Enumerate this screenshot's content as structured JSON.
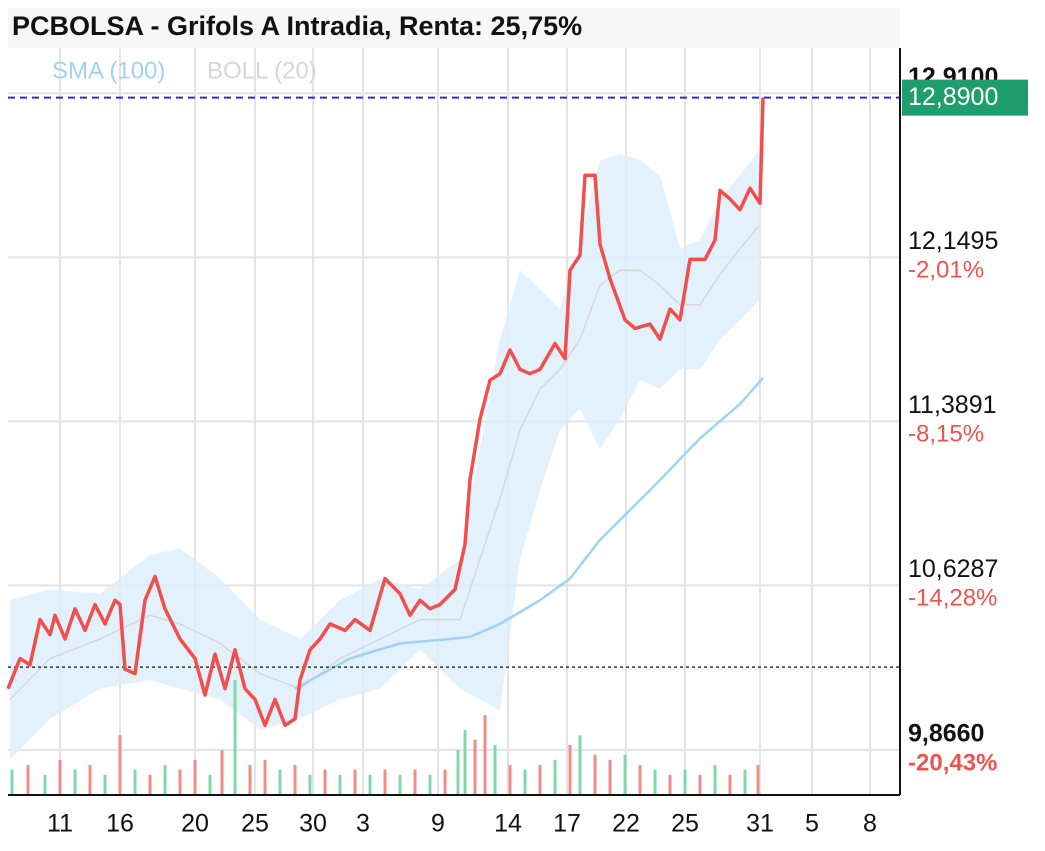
{
  "chart_data": {
    "type": "line",
    "title": "PCBOLSA - Grifols A Intradia, Renta: 25,75%",
    "xlim": [
      0,
      89.2
    ],
    "xticks": [
      {
        "value": 5.2,
        "label": "11"
      },
      {
        "value": 11.2,
        "label": "16"
      },
      {
        "value": 18.7,
        "label": "20"
      },
      {
        "value": 24.7,
        "label": "25"
      },
      {
        "value": 30.5,
        "label": "30"
      },
      {
        "value": 35.5,
        "label": "3"
      },
      {
        "value": 43,
        "label": "9"
      },
      {
        "value": 50,
        "label": "14"
      },
      {
        "value": 55.9,
        "label": "17"
      },
      {
        "value": 61.8,
        "label": "22"
      },
      {
        "value": 67.7,
        "label": "25"
      },
      {
        "value": 75.2,
        "label": "31"
      },
      {
        "value": 80.4,
        "label": "5"
      },
      {
        "value": 86.2,
        "label": "8"
      }
    ],
    "ylim": [
      9.657,
      13.12
    ],
    "yticks": [
      {
        "value": 9.866,
        "label": "9,8660"
      },
      {
        "value": 10.6287,
        "label": "10,6287"
      },
      {
        "value": 11.3891,
        "label": "11,3891"
      },
      {
        "value": 12.1495,
        "label": "12,1495"
      },
      {
        "value": 12.91,
        "label": "12,9100"
      }
    ],
    "ytick_changes": [
      "-20,43%",
      "-14,28%",
      "-8,15%",
      "-2,01%",
      null
    ],
    "grid": true,
    "y2lim": [
      0,
      100
    ],
    "price": {
      "color": "#f24e4c",
      "x": [
        0,
        1.2,
        2.2,
        3.2,
        4.2,
        4.7,
        5.7,
        6.7,
        7.7,
        8.7,
        9.7,
        10.7,
        11.2,
        11.7,
        12.7,
        13.7,
        14.7,
        15.7,
        17.2,
        18.7,
        19.7,
        20.7,
        21.7,
        22.7,
        23.7,
        24.7,
        25.7,
        26.7,
        27.7,
        28.7,
        29.2,
        30.2,
        31.2,
        32.2,
        33.7,
        34.7,
        36.2,
        37.7,
        39.2,
        40.2,
        41.2,
        42.2,
        43.2,
        44.7,
        45.7,
        46.2,
        47.2,
        48.2,
        49.2,
        50.2,
        51.2,
        52.2,
        53.2,
        54.7,
        55.7,
        56.2,
        57.2,
        57.7,
        58.7,
        59.2,
        60.2,
        61.7,
        62.7,
        64.2,
        65.2,
        66.2,
        67.2,
        68.2,
        69.7,
        70.7,
        71.2,
        72.2,
        73.2,
        74.2,
        75.2,
        75.5
      ],
      "values": [
        10.15,
        10.29,
        10.26,
        10.47,
        10.4,
        10.49,
        10.38,
        10.52,
        10.42,
        10.54,
        10.45,
        10.56,
        10.54,
        10.24,
        10.22,
        10.56,
        10.67,
        10.52,
        10.38,
        10.29,
        10.12,
        10.31,
        10.15,
        10.33,
        10.15,
        10.1,
        9.98,
        10.1,
        9.98,
        10.01,
        10.19,
        10.33,
        10.38,
        10.45,
        10.42,
        10.47,
        10.42,
        10.66,
        10.59,
        10.49,
        10.56,
        10.52,
        10.54,
        10.61,
        10.82,
        11.12,
        11.4,
        11.58,
        11.61,
        11.72,
        11.63,
        11.61,
        11.63,
        11.75,
        11.68,
        12.09,
        12.16,
        12.53,
        12.53,
        12.21,
        12.05,
        11.86,
        11.82,
        11.84,
        11.77,
        11.91,
        11.86,
        12.14,
        12.14,
        12.23,
        12.46,
        12.42,
        12.37,
        12.47,
        12.4,
        12.89
      ]
    },
    "sma": {
      "name": "SMA (100)",
      "color": "#9fd2f5",
      "x": [
        28.7,
        34.2,
        39.2,
        44.2,
        46.2,
        49.2,
        53.2,
        56.2,
        59.2,
        64.2,
        69.2,
        73.2,
        75.5
      ],
      "values": [
        10.15,
        10.29,
        10.36,
        10.38,
        10.39,
        10.45,
        10.56,
        10.66,
        10.84,
        11.07,
        11.31,
        11.47,
        11.59
      ]
    },
    "boll": {
      "name": "BOLL (20)",
      "color": "#d6d6d6",
      "fill": "#dcedfb",
      "x": [
        0.2,
        4.2,
        9.2,
        14.2,
        17.2,
        21.2,
        25.2,
        29.2,
        33.2,
        37.2,
        41.2,
        45.2,
        49.2,
        51.2,
        53.2,
        55.2,
        57.2,
        59.2,
        61.2,
        63.2,
        65.2,
        67.2,
        69.2,
        71.2,
        73.2,
        75.2
      ],
      "upper": [
        10.56,
        10.61,
        10.59,
        10.77,
        10.8,
        10.66,
        10.47,
        10.38,
        10.56,
        10.66,
        10.61,
        10.75,
        11.77,
        12.09,
        12.0,
        11.91,
        12.23,
        12.6,
        12.63,
        12.6,
        12.53,
        12.19,
        12.23,
        12.42,
        12.53,
        12.65
      ],
      "middle": [
        10.1,
        10.29,
        10.38,
        10.49,
        10.45,
        10.36,
        10.22,
        10.15,
        10.29,
        10.38,
        10.47,
        10.47,
        11.03,
        11.35,
        11.54,
        11.63,
        11.77,
        12.02,
        12.09,
        12.09,
        12.02,
        11.93,
        11.93,
        12.07,
        12.19,
        12.3
      ],
      "lower": [
        9.82,
        10.01,
        10.15,
        10.19,
        10.15,
        10.1,
        9.96,
        10.01,
        10.1,
        10.15,
        10.33,
        10.15,
        10.05,
        10.75,
        11.07,
        11.35,
        11.45,
        11.26,
        11.4,
        11.58,
        11.54,
        11.63,
        11.63,
        11.77,
        11.86,
        11.95
      ]
    },
    "volume": {
      "axis": "y2",
      "x": [
        0.4,
        2,
        3.7,
        5.2,
        6.7,
        8.2,
        9.7,
        11.2,
        12.7,
        14.2,
        15.7,
        17.2,
        18.7,
        20.2,
        21.4,
        22.7,
        24.2,
        25.7,
        27.2,
        28.7,
        30.2,
        31.7,
        33.2,
        34.7,
        36.2,
        37.7,
        39.2,
        40.7,
        42.2,
        43.7,
        45,
        45.7,
        46.7,
        47.7,
        48.7,
        50.2,
        51.7,
        53.2,
        54.7,
        56.2,
        57.2,
        58.7,
        60.2,
        61.7,
        63.2,
        64.7,
        66.2,
        67.7,
        69.2,
        70.7,
        72.2,
        73.7,
        75
      ],
      "values": [
        3.4,
        4.0,
        2.7,
        4.7,
        3.4,
        4.0,
        2.7,
        8.0,
        3.4,
        2.7,
        4.0,
        3.4,
        4.7,
        2.7,
        6.0,
        15.4,
        4.0,
        4.7,
        3.4,
        4.0,
        2.7,
        3.4,
        2.7,
        3.4,
        2.7,
        3.4,
        2.7,
        3.4,
        2.7,
        3.4,
        6.0,
        8.7,
        7.4,
        10.7,
        6.7,
        4.0,
        3.4,
        4.0,
        4.7,
        6.7,
        8.0,
        5.4,
        4.7,
        5.4,
        4.0,
        3.4,
        2.7,
        3.4,
        2.7,
        4.0,
        2.7,
        3.4,
        4.0
      ],
      "colors": [
        "#7fd9a8",
        "#f28b8b",
        "#7fd9a8",
        "#f28b8b",
        "#7fd9a8",
        "#f28b8b",
        "#7fd9a8",
        "#f28b8b",
        "#7fd9a8",
        "#f28b8b",
        "#7fd9a8",
        "#f28b8b",
        "#f28b8b",
        "#7fd9a8",
        "#f28b8b",
        "#7fd9a8",
        "#f28b8b",
        "#f28b8b",
        "#7fd9a8",
        "#f28b8b",
        "#7fd9a8",
        "#f28b8b",
        "#7fd9a8",
        "#f28b8b",
        "#7fd9a8",
        "#f28b8b",
        "#7fd9a8",
        "#f28b8b",
        "#7fd9a8",
        "#f28b8b",
        "#7fd9a8",
        "#7fd9a8",
        "#f28b8b",
        "#f28b8b",
        "#7fd9a8",
        "#f28b8b",
        "#7fd9a8",
        "#f28b8b",
        "#7fd9a8",
        "#f28b8b",
        "#7fd9a8",
        "#f28b8b",
        "#f28b8b",
        "#7fd9a8",
        "#f28b8b",
        "#7fd9a8",
        "#f28b8b",
        "#7fd9a8",
        "#f28b8b",
        "#7fd9a8",
        "#f28b8b",
        "#7fd9a8",
        "#f28b8b"
      ]
    },
    "last_price": {
      "value": 12.89,
      "label": "12,8900",
      "color": "#1e9e6e"
    },
    "reference_price": 10.25
  }
}
